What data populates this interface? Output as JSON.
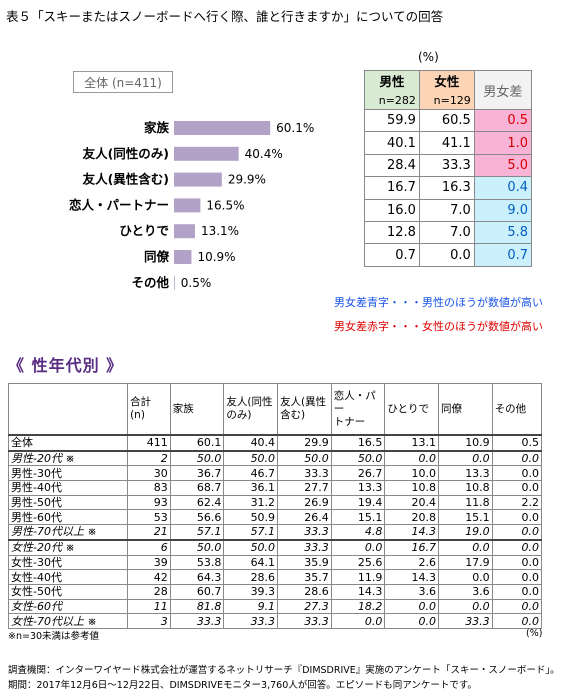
{
  "title": "表５「スキーまたはスノーボードへ行く際、誰と行きますか」についての回答",
  "total_label": "全体 (n=411)",
  "pct_unit": "(%)",
  "chart_data": {
    "type": "bar",
    "categories": [
      "家族",
      "友人(同性のみ)",
      "友人(異性含む)",
      "恋人・パートナー",
      "ひとりで",
      "同僚",
      "その他"
    ],
    "values": [
      60.1,
      40.4,
      29.9,
      16.5,
      13.1,
      10.9,
      0.5
    ],
    "value_labels": [
      "60.1%",
      "40.4%",
      "29.9%",
      "16.5%",
      "13.1%",
      "10.9%",
      "0.5%"
    ],
    "xlim": [
      0,
      100
    ],
    "bar_color": "#b3a2c7"
  },
  "gender_table": {
    "male_label": "男性",
    "male_n": "n=282",
    "female_label": "女性",
    "female_n": "n=129",
    "diff_label": "男女差",
    "rows": [
      {
        "male": "59.9",
        "female": "60.5",
        "diff": "0.5",
        "sign": "pos"
      },
      {
        "male": "40.1",
        "female": "41.1",
        "diff": "1.0",
        "sign": "pos"
      },
      {
        "male": "28.4",
        "female": "33.3",
        "diff": "5.0",
        "sign": "pos"
      },
      {
        "male": "16.7",
        "female": "16.3",
        "diff": "0.4",
        "sign": "neg"
      },
      {
        "male": "16.0",
        "female": "7.0",
        "diff": "9.0",
        "sign": "neg"
      },
      {
        "male": "12.8",
        "female": "7.0",
        "diff": "5.8",
        "sign": "neg"
      },
      {
        "male": "0.7",
        "female": "0.0",
        "diff": "0.7",
        "sign": "neg"
      }
    ]
  },
  "note_blue": "男女差青字・・・男性のほうが数値が高い",
  "note_red": "男女差赤字・・・女性のほうが数値が高い",
  "section_title": "《 性年代別 》",
  "age_table": {
    "headers": [
      "",
      "合計\n(n)",
      "家族",
      "友人(同性\nのみ)",
      "友人(異性\n含む)",
      "恋人・パー\nトナー",
      "ひとりで",
      "同僚",
      "その他"
    ],
    "rows": [
      {
        "label": "全体",
        "cells": [
          "411",
          "60.1",
          "40.4",
          "29.9",
          "16.5",
          "13.1",
          "10.9",
          "0.5"
        ],
        "italic": false
      },
      {
        "label": "男性-20代 ※",
        "cells": [
          "2",
          "50.0",
          "50.0",
          "50.0",
          "50.0",
          "0.0",
          "0.0",
          "0.0"
        ],
        "italic": true
      },
      {
        "label": "男性-30代",
        "cells": [
          "30",
          "36.7",
          "46.7",
          "33.3",
          "26.7",
          "10.0",
          "13.3",
          "0.0"
        ],
        "italic": false
      },
      {
        "label": "男性-40代",
        "cells": [
          "83",
          "68.7",
          "36.1",
          "27.7",
          "13.3",
          "10.8",
          "10.8",
          "0.0"
        ],
        "italic": false
      },
      {
        "label": "男性-50代",
        "cells": [
          "93",
          "62.4",
          "31.2",
          "26.9",
          "19.4",
          "20.4",
          "11.8",
          "2.2"
        ],
        "italic": false
      },
      {
        "label": "男性-60代",
        "cells": [
          "53",
          "56.6",
          "50.9",
          "26.4",
          "15.1",
          "20.8",
          "15.1",
          "0.0"
        ],
        "italic": false
      },
      {
        "label": "男性-70代以上 ※",
        "cells": [
          "21",
          "57.1",
          "57.1",
          "33.3",
          "4.8",
          "14.3",
          "19.0",
          "0.0"
        ],
        "italic": true
      },
      {
        "label": "女性-20代 ※",
        "cells": [
          "6",
          "50.0",
          "50.0",
          "33.3",
          "0.0",
          "16.7",
          "0.0",
          "0.0"
        ],
        "italic": true
      },
      {
        "label": "女性-30代",
        "cells": [
          "39",
          "53.8",
          "64.1",
          "35.9",
          "25.6",
          "2.6",
          "17.9",
          "0.0"
        ],
        "italic": false
      },
      {
        "label": "女性-40代",
        "cells": [
          "42",
          "64.3",
          "28.6",
          "35.7",
          "11.9",
          "14.3",
          "0.0",
          "0.0"
        ],
        "italic": false
      },
      {
        "label": "女性-50代",
        "cells": [
          "28",
          "60.7",
          "39.3",
          "28.6",
          "14.3",
          "3.6",
          "3.6",
          "0.0"
        ],
        "italic": false
      },
      {
        "label": "女性-60代",
        "cells": [
          "11",
          "81.8",
          "9.1",
          "27.3",
          "18.2",
          "0.0",
          "0.0",
          "0.0"
        ],
        "italic": true
      },
      {
        "label": "女性-70代以上 ※",
        "cells": [
          "3",
          "33.3",
          "33.3",
          "33.3",
          "0.0",
          "0.0",
          "33.3",
          "0.0"
        ],
        "italic": true
      }
    ]
  },
  "footnote": "※n=30未満は参考値",
  "unit2": "(%)",
  "source1": "調査機関：インターワイヤード株式会社が運営するネットリサーチ『DIMSDRIVE』実施のアンケート「スキー・スノーボード」。",
  "source2": "期間：2017年12月6日～12月22日、DIMSDRIVEモニター3,760人が回答。エピソードも同アンケートです。",
  "colors": {
    "pos_bg": "#f9b3d6",
    "pos_text": "#d40000",
    "neg_bg": "#ccf0fb",
    "neg_text": "#0060c0",
    "accent": "#5a2d82"
  }
}
